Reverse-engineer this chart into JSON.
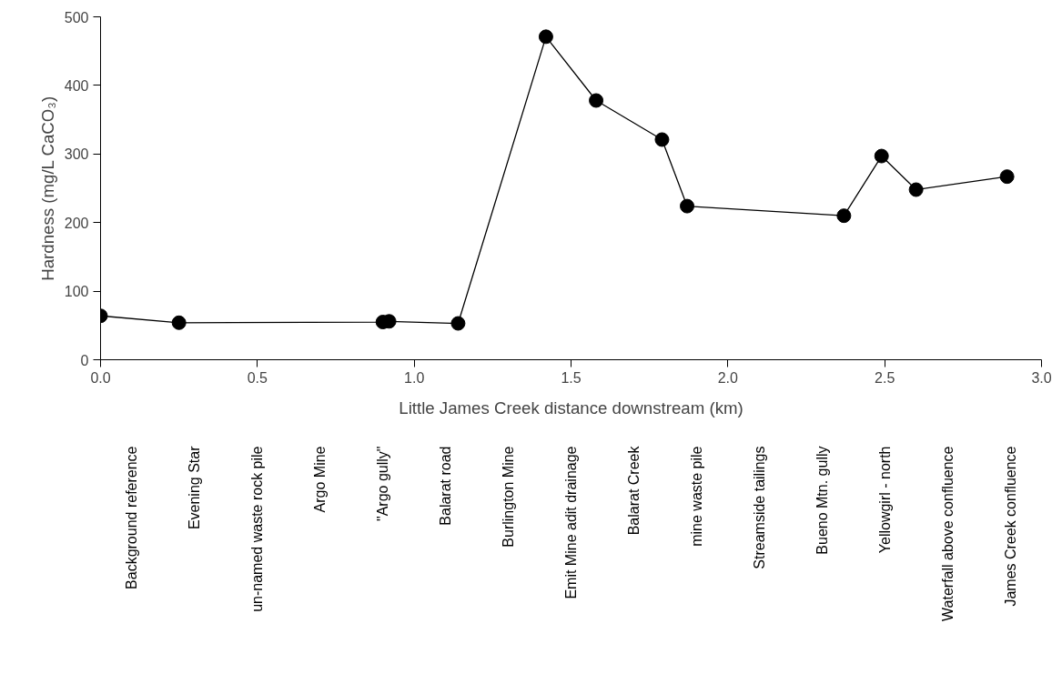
{
  "chart_data": {
    "type": "line",
    "xlabel": "Little James Creek distance downstream (km)",
    "ylabel": "Hardness (mg/L CaCO₃)",
    "x": [
      0,
      0.25,
      0.9,
      0.92,
      1.14,
      1.42,
      1.58,
      1.79,
      1.87,
      2.37,
      2.49,
      2.6,
      2.89
    ],
    "series": [
      {
        "color": "#000000",
        "values": [
          64,
          54,
          55,
          56,
          53,
          471,
          378,
          321,
          224,
          210,
          297,
          248,
          267
        ]
      }
    ],
    "xlim": [
      0,
      3
    ],
    "xticks": [
      {
        "value": 0,
        "label": "0.0"
      },
      {
        "value": 0.5,
        "label": "0.5"
      },
      {
        "value": 1,
        "label": "1.0"
      },
      {
        "value": 1.5,
        "label": "1.5"
      },
      {
        "value": 2,
        "label": "2.0"
      },
      {
        "value": 2.5,
        "label": "2.5"
      },
      {
        "value": 3,
        "label": "3.0"
      }
    ],
    "ylim": [
      0,
      500
    ],
    "yticks": [
      0,
      100,
      200,
      300,
      400,
      500
    ],
    "grid": false,
    "marker": "circle",
    "line_style": "solid",
    "annotations": [
      "Background reference",
      "Evening Star",
      "un-named waste rock pile",
      "Argo Mine",
      "\"Argo gully\"",
      "Balarat road",
      "Burlington Mine",
      "Emit Mine adit drainage",
      "Balarat Creek",
      "mine waste pile",
      "Streamside tailings",
      "Bueno Mtn. gully",
      "Yellowgirl - north",
      "Waterfall above confluence",
      "James Creek confluence"
    ]
  }
}
